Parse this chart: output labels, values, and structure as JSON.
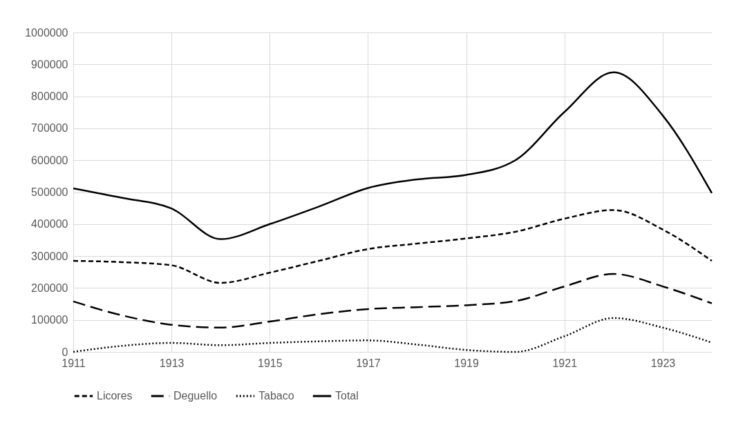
{
  "chart_data": {
    "type": "line",
    "x": [
      1911,
      1912,
      1913,
      1914,
      1915,
      1916,
      1917,
      1918,
      1919,
      1920,
      1921,
      1922,
      1923,
      1924
    ],
    "xlim": [
      1911,
      1924
    ],
    "xticks": [
      1911,
      1913,
      1915,
      1917,
      1919,
      1921,
      1923
    ],
    "ylim": [
      0,
      1000000
    ],
    "yticks": [
      0,
      100000,
      200000,
      300000,
      400000,
      500000,
      600000,
      700000,
      800000,
      900000,
      1000000
    ],
    "grid": true,
    "legend": "bottom",
    "marker": "none",
    "series": [
      {
        "name": "Licores",
        "color": "#000000",
        "line_style": "dashed",
        "values": [
          285000,
          281000,
          271000,
          216000,
          248000,
          285000,
          322000,
          339000,
          355000,
          376000,
          417000,
          444000,
          383000,
          285000
        ]
      },
      {
        "name": "Deguello",
        "color": "#000000",
        "line_style": "dashed",
        "values": [
          158000,
          114000,
          85000,
          76000,
          95000,
          118000,
          134000,
          140000,
          146000,
          159000,
          205000,
          244000,
          205000,
          152000
        ]
      },
      {
        "name": "Tabaco",
        "color": "#000000",
        "line_style": "dotted",
        "values": [
          0,
          19000,
          28000,
          21000,
          28000,
          33000,
          36000,
          23000,
          6000,
          0,
          49000,
          106000,
          76000,
          29000
        ]
      },
      {
        "name": "Total",
        "color": "#000000",
        "line_style": "solid",
        "values": [
          512000,
          482000,
          449000,
          353000,
          400000,
          455000,
          513000,
          540000,
          554000,
          600000,
          751000,
          875000,
          740000,
          497000
        ]
      }
    ]
  }
}
